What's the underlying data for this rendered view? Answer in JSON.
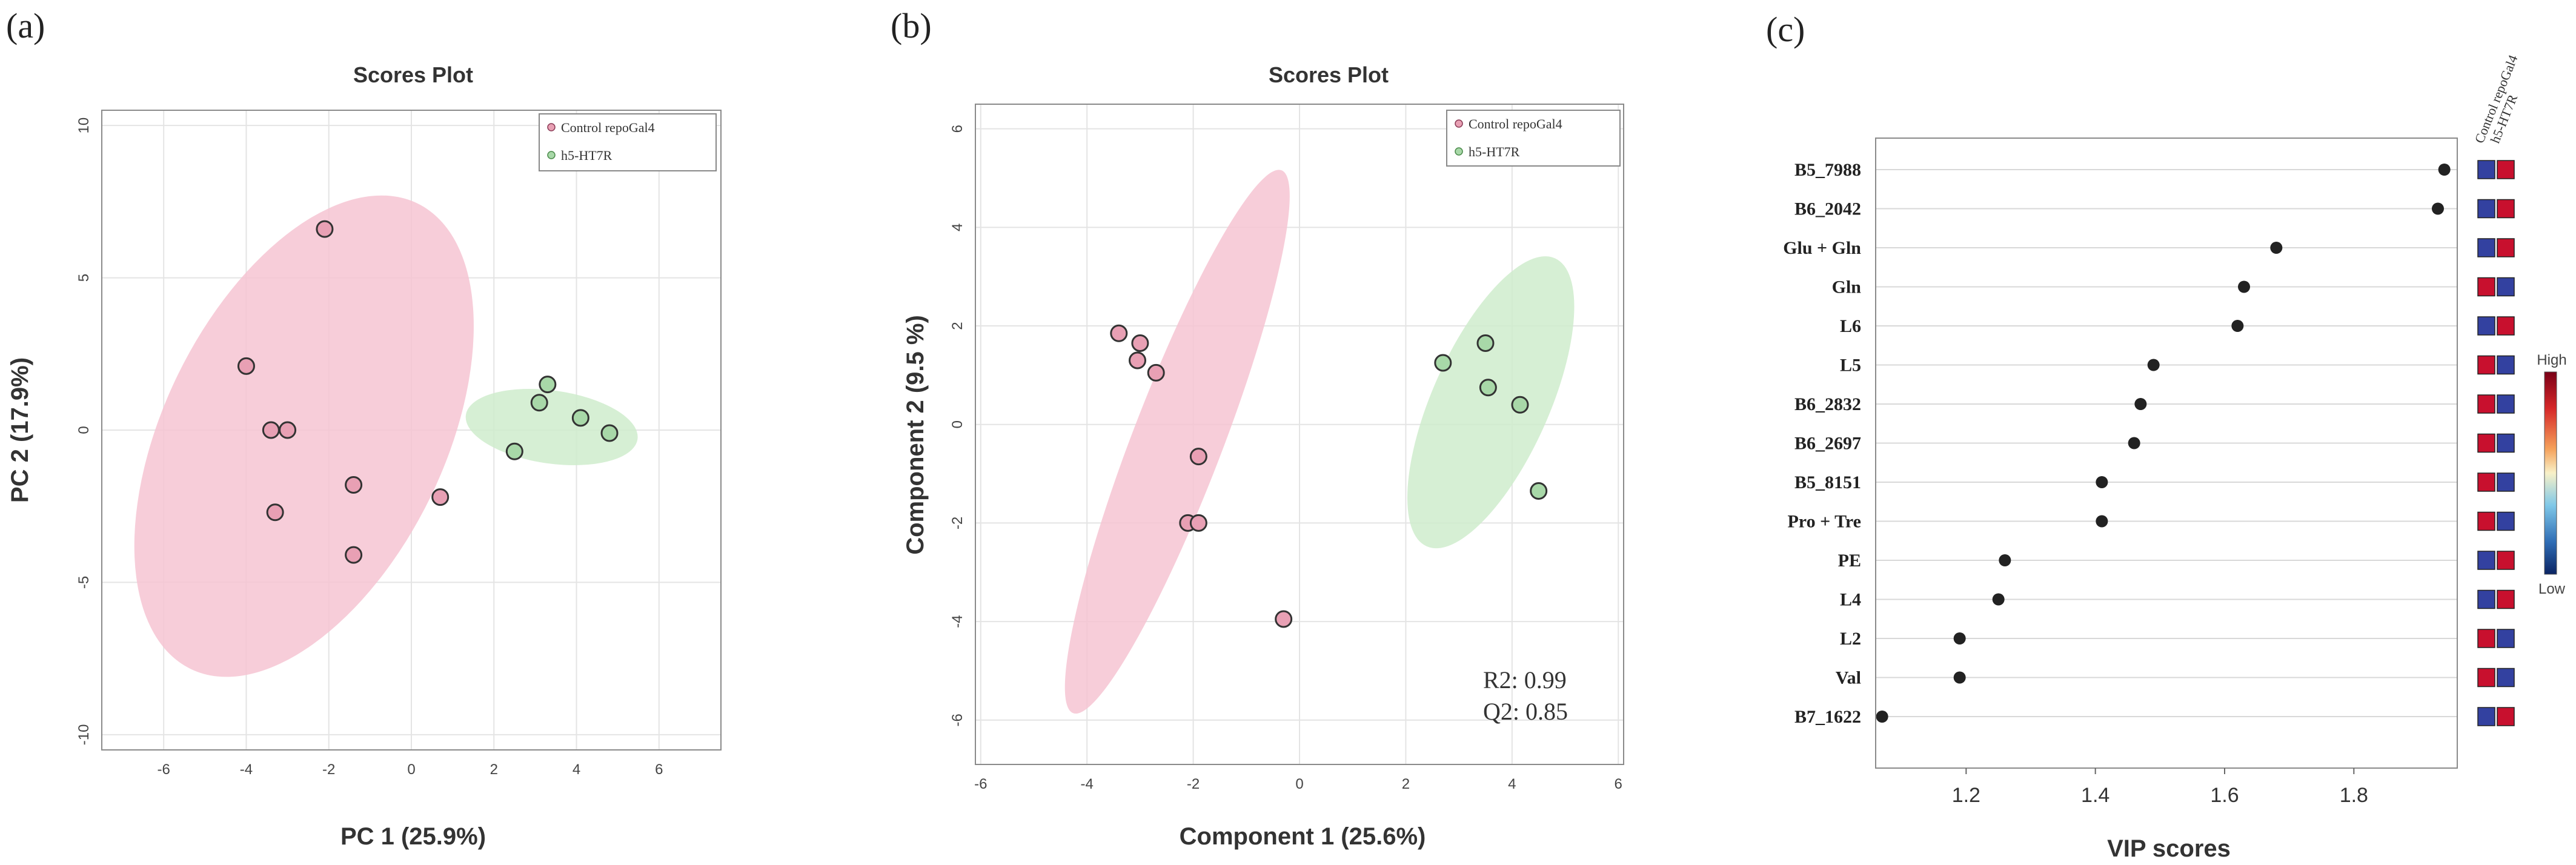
{
  "figure": {
    "panel_labels": [
      "(a)",
      "(b)",
      "(c)"
    ],
    "colors": {
      "control": "#e8a0b4",
      "control_ellipse": "#f6c4d2",
      "ht7r": "#a8d8a8",
      "ht7r_ellipse": "#cfeccd",
      "point_stroke": "#333333",
      "lollipop_dot": "#222222",
      "heat_high": "#c8102e",
      "heat_low": "#3341a0"
    }
  },
  "chart_data": [
    {
      "type": "scatter",
      "id": "a",
      "title": "Scores Plot",
      "xlabel": "PC 1 (25.9%)",
      "ylabel": "PC 2 (17.9%)",
      "xlim": [
        -7.5,
        7.5
      ],
      "ylim": [
        -10.5,
        10.5
      ],
      "xticks": [
        -6,
        -4,
        -2,
        0,
        2,
        4,
        6
      ],
      "yticks": [
        -10,
        -5,
        0,
        5,
        10
      ],
      "grid": true,
      "legend": {
        "position": "top-right",
        "entries": [
          "Control repoGal4",
          "h5-HT7R"
        ]
      },
      "series": [
        {
          "name": "Control repoGal4",
          "points": [
            [
              -2.1,
              6.6
            ],
            [
              -4.0,
              2.1
            ],
            [
              -3.4,
              0.0
            ],
            [
              -3.0,
              0.0
            ],
            [
              -1.4,
              -1.8
            ],
            [
              0.7,
              -2.2
            ],
            [
              -3.3,
              -2.7
            ],
            [
              -1.4,
              -4.1
            ]
          ],
          "ellipse": {
            "cx": -2.6,
            "cy": -0.2,
            "rx": 3.4,
            "ry": 8.5,
            "angle": 26
          }
        },
        {
          "name": "h5-HT7R",
          "points": [
            [
              3.3,
              1.5
            ],
            [
              3.1,
              0.9
            ],
            [
              4.1,
              0.4
            ],
            [
              4.8,
              -0.1
            ],
            [
              2.5,
              -0.7
            ]
          ],
          "ellipse": {
            "cx": 3.4,
            "cy": 0.1,
            "rx": 2.1,
            "ry": 1.2,
            "angle": 8
          }
        }
      ]
    },
    {
      "type": "scatter",
      "id": "b",
      "title": "Scores Plot",
      "xlabel": "Component 1 (25.6%)",
      "ylabel": "Component 2 (9.5 %)",
      "xlim": [
        -6.1,
        6.1
      ],
      "ylim": [
        -6.9,
        6.5
      ],
      "xticks": [
        -6,
        -4,
        -2,
        0,
        2,
        4,
        6
      ],
      "yticks": [
        -6,
        -4,
        -2,
        0,
        2,
        4,
        6
      ],
      "grid": true,
      "legend": {
        "position": "top-right",
        "entries": [
          "Control repoGal4",
          "h5-HT7R"
        ]
      },
      "annotations": [
        "R2: 0.99",
        "Q2: 0.85"
      ],
      "series": [
        {
          "name": "Control repoGal4",
          "points": [
            [
              -3.4,
              1.85
            ],
            [
              -3.0,
              1.65
            ],
            [
              -3.05,
              1.3
            ],
            [
              -2.7,
              1.05
            ],
            [
              -1.9,
              -0.65
            ],
            [
              -2.1,
              -2.0
            ],
            [
              -1.9,
              -2.0
            ],
            [
              -0.3,
              -3.95
            ]
          ],
          "ellipse": {
            "cx": -2.3,
            "cy": -0.35,
            "rx": 0.85,
            "ry": 5.9,
            "angle": 21
          }
        },
        {
          "name": "h5-HT7R",
          "points": [
            [
              2.7,
              1.25
            ],
            [
              3.5,
              1.65
            ],
            [
              3.55,
              0.75
            ],
            [
              4.15,
              0.4
            ],
            [
              4.5,
              -1.35
            ]
          ],
          "ellipse": {
            "cx": 3.6,
            "cy": 0.45,
            "rx": 1.1,
            "ry": 3.2,
            "angle": 24
          }
        }
      ]
    },
    {
      "type": "lollipop",
      "id": "c",
      "xlabel": "VIP scores",
      "xlim": [
        1.06,
        1.96
      ],
      "xticks": [
        1.2,
        1.4,
        1.6,
        1.8
      ],
      "features": [
        "B5_7988",
        "B6_2042",
        "Glu + Gln",
        "Gln",
        "L6",
        "L5",
        "B6_2832",
        "B6_2697",
        "B5_8151",
        "Pro + Tre",
        "PE",
        "L4",
        "L2",
        "Val",
        "B7_1622"
      ],
      "values": [
        1.94,
        1.93,
        1.68,
        1.63,
        1.62,
        1.49,
        1.47,
        1.46,
        1.41,
        1.41,
        1.26,
        1.25,
        1.19,
        1.19,
        1.07
      ],
      "heatmap_columns": [
        "Control repoGal4",
        "h5-HT7R"
      ],
      "heatmap": [
        [
          "low",
          "high"
        ],
        [
          "low",
          "high"
        ],
        [
          "low",
          "high"
        ],
        [
          "high",
          "low"
        ],
        [
          "low",
          "high"
        ],
        [
          "high",
          "low"
        ],
        [
          "high",
          "low"
        ],
        [
          "high",
          "low"
        ],
        [
          "high",
          "low"
        ],
        [
          "high",
          "low"
        ],
        [
          "low",
          "high"
        ],
        [
          "low",
          "high"
        ],
        [
          "high",
          "low"
        ],
        [
          "high",
          "low"
        ],
        [
          "low",
          "high"
        ]
      ],
      "colorbar": {
        "high_label": "High",
        "low_label": "Low"
      }
    }
  ]
}
